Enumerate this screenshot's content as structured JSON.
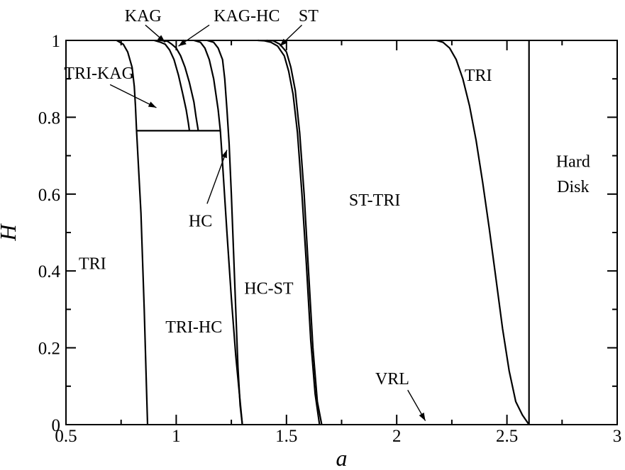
{
  "chart_data": {
    "type": "line",
    "xlabel": "a",
    "ylabel": "H",
    "xlim": [
      0.5,
      3
    ],
    "ylim": [
      0,
      1
    ],
    "grid": false,
    "legend": "none",
    "x_major_ticks": [
      {
        "value": 0.5,
        "label": "0.5"
      },
      {
        "value": 1,
        "label": "1"
      },
      {
        "value": 1.5,
        "label": "1.5"
      },
      {
        "value": 2,
        "label": "2"
      },
      {
        "value": 2.5,
        "label": "2.5"
      },
      {
        "value": 3,
        "label": "3"
      }
    ],
    "y_major_ticks": [
      {
        "value": 0,
        "label": "0"
      },
      {
        "value": 0.2,
        "label": "0.2"
      },
      {
        "value": 0.4,
        "label": "0.4"
      },
      {
        "value": 0.6,
        "label": "0.6"
      },
      {
        "value": 0.8,
        "label": "0.8"
      },
      {
        "value": 1,
        "label": "1"
      }
    ],
    "x_minor_ticks": [
      0.75,
      1.25,
      1.75,
      2.25,
      2.75
    ],
    "y_minor_ticks": [
      0.1,
      0.3,
      0.5,
      0.7,
      0.9
    ],
    "boundaries": [
      {
        "id": "tri-kag-left",
        "x": [
          0.73,
          0.76,
          0.78,
          0.8,
          0.81,
          0.815,
          0.82
        ],
        "y": [
          1.0,
          0.99,
          0.97,
          0.93,
          0.88,
          0.83,
          0.765
        ]
      },
      {
        "id": "tri-trihc",
        "x": [
          0.82,
          0.84,
          0.855,
          0.865,
          0.87
        ],
        "y": [
          0.765,
          0.55,
          0.3,
          0.1,
          0.0
        ]
      },
      {
        "id": "kag-left",
        "x": [
          0.9,
          0.93,
          0.95,
          0.97,
          0.99,
          1.01,
          1.03
        ],
        "y": [
          1.0,
          0.995,
          0.99,
          0.975,
          0.95,
          0.91,
          0.86
        ]
      },
      {
        "id": "kag-right",
        "x": [
          1.03,
          1.045,
          1.055,
          1.06
        ],
        "y": [
          0.86,
          0.82,
          0.785,
          0.765
        ]
      },
      {
        "id": "kaghc-boundary",
        "x": [
          0.93,
          0.96,
          0.98,
          1.0,
          1.02,
          1.04,
          1.06,
          1.08,
          1.09,
          1.1
        ],
        "y": [
          1.0,
          0.998,
          0.99,
          0.98,
          0.96,
          0.93,
          0.89,
          0.84,
          0.8,
          0.765
        ]
      },
      {
        "id": "trikag-trihc-horizontal",
        "x": [
          0.82,
          1.2
        ],
        "y": [
          0.765,
          0.765
        ]
      },
      {
        "id": "hc-left",
        "x": [
          1.08,
          1.11,
          1.13,
          1.15,
          1.17,
          1.19,
          1.2,
          1.21,
          1.23,
          1.25,
          1.27,
          1.29,
          1.3
        ],
        "y": [
          1.0,
          0.995,
          0.98,
          0.95,
          0.9,
          0.82,
          0.765,
          0.68,
          0.5,
          0.33,
          0.18,
          0.06,
          0.0
        ]
      },
      {
        "id": "hc-right",
        "x": [
          1.14,
          1.17,
          1.19,
          1.21,
          1.22,
          1.23,
          1.24,
          1.25,
          1.26,
          1.27,
          1.28,
          1.29,
          1.3
        ],
        "y": [
          1.0,
          0.995,
          0.98,
          0.95,
          0.9,
          0.82,
          0.73,
          0.6,
          0.45,
          0.3,
          0.15,
          0.05,
          0.0
        ]
      },
      {
        "id": "st-left",
        "x": [
          1.37,
          1.4,
          1.43,
          1.46,
          1.49,
          1.51,
          1.53,
          1.55,
          1.57,
          1.59,
          1.61,
          1.63,
          1.65
        ],
        "y": [
          1.0,
          0.999,
          0.995,
          0.985,
          0.96,
          0.92,
          0.86,
          0.76,
          0.6,
          0.42,
          0.22,
          0.08,
          0.0
        ]
      },
      {
        "id": "st-right",
        "x": [
          1.41,
          1.44,
          1.47,
          1.5,
          1.52,
          1.54,
          1.56,
          1.58,
          1.6,
          1.62,
          1.64,
          1.66
        ],
        "y": [
          1.0,
          0.999,
          0.99,
          0.97,
          0.93,
          0.87,
          0.76,
          0.6,
          0.4,
          0.2,
          0.06,
          0.0
        ]
      },
      {
        "id": "sttri-tri",
        "x": [
          2.18,
          2.21,
          2.24,
          2.27,
          2.3,
          2.33,
          2.36,
          2.39,
          2.42,
          2.45,
          2.48,
          2.51,
          2.54,
          2.57,
          2.6
        ],
        "y": [
          1.0,
          0.995,
          0.98,
          0.95,
          0.9,
          0.83,
          0.74,
          0.63,
          0.51,
          0.38,
          0.25,
          0.14,
          0.06,
          0.025,
          0.0
        ]
      },
      {
        "id": "tri-harddisk",
        "x": [
          2.6,
          2.6
        ],
        "y": [
          0.0,
          1.0
        ]
      }
    ],
    "annotations": [
      {
        "id": "kag",
        "text": "KAG",
        "text_at": [
          0.85,
          1.065
        ],
        "arrow_from": [
          0.86,
          1.04
        ],
        "arrow_to": [
          0.95,
          0.995
        ]
      },
      {
        "id": "kag-hc",
        "text": "KAG-HC",
        "text_at": [
          1.32,
          1.065
        ],
        "arrow_from": [
          1.15,
          1.04
        ],
        "arrow_to": [
          1.01,
          0.985
        ]
      },
      {
        "id": "st",
        "text": "ST",
        "text_at": [
          1.6,
          1.065
        ],
        "arrow_from": [
          1.57,
          1.04
        ],
        "arrow_to": [
          1.47,
          0.985
        ]
      },
      {
        "id": "tri-kag",
        "text": "TRI-KAG",
        "text_at": [
          0.65,
          0.915
        ],
        "arrow_from": [
          0.7,
          0.885
        ],
        "arrow_to": [
          0.91,
          0.825
        ]
      },
      {
        "id": "hc",
        "text": "HC",
        "text_at": [
          1.11,
          0.53
        ],
        "arrow_from": [
          1.14,
          0.575
        ],
        "arrow_to": [
          1.23,
          0.715
        ]
      },
      {
        "id": "vrl",
        "text": "VRL",
        "text_at": [
          1.98,
          0.12
        ],
        "arrow_from": [
          2.05,
          0.09
        ],
        "arrow_to": [
          2.13,
          0.01
        ]
      }
    ],
    "regions": [
      {
        "id": "tri-left",
        "text": "TRI",
        "at": [
          0.62,
          0.42
        ]
      },
      {
        "id": "tri-hc",
        "text": "TRI-HC",
        "at": [
          1.08,
          0.255
        ]
      },
      {
        "id": "hc-st",
        "text": "HC-ST",
        "at": [
          1.42,
          0.355
        ]
      },
      {
        "id": "st-tri",
        "text": "ST-TRI",
        "at": [
          1.9,
          0.585
        ]
      },
      {
        "id": "tri-right",
        "text": "TRI",
        "at": [
          2.37,
          0.91
        ]
      },
      {
        "id": "hard",
        "text": "Hard",
        "at": [
          2.8,
          0.685
        ]
      },
      {
        "id": "disk",
        "text": "Disk",
        "at": [
          2.8,
          0.62
        ]
      }
    ]
  }
}
